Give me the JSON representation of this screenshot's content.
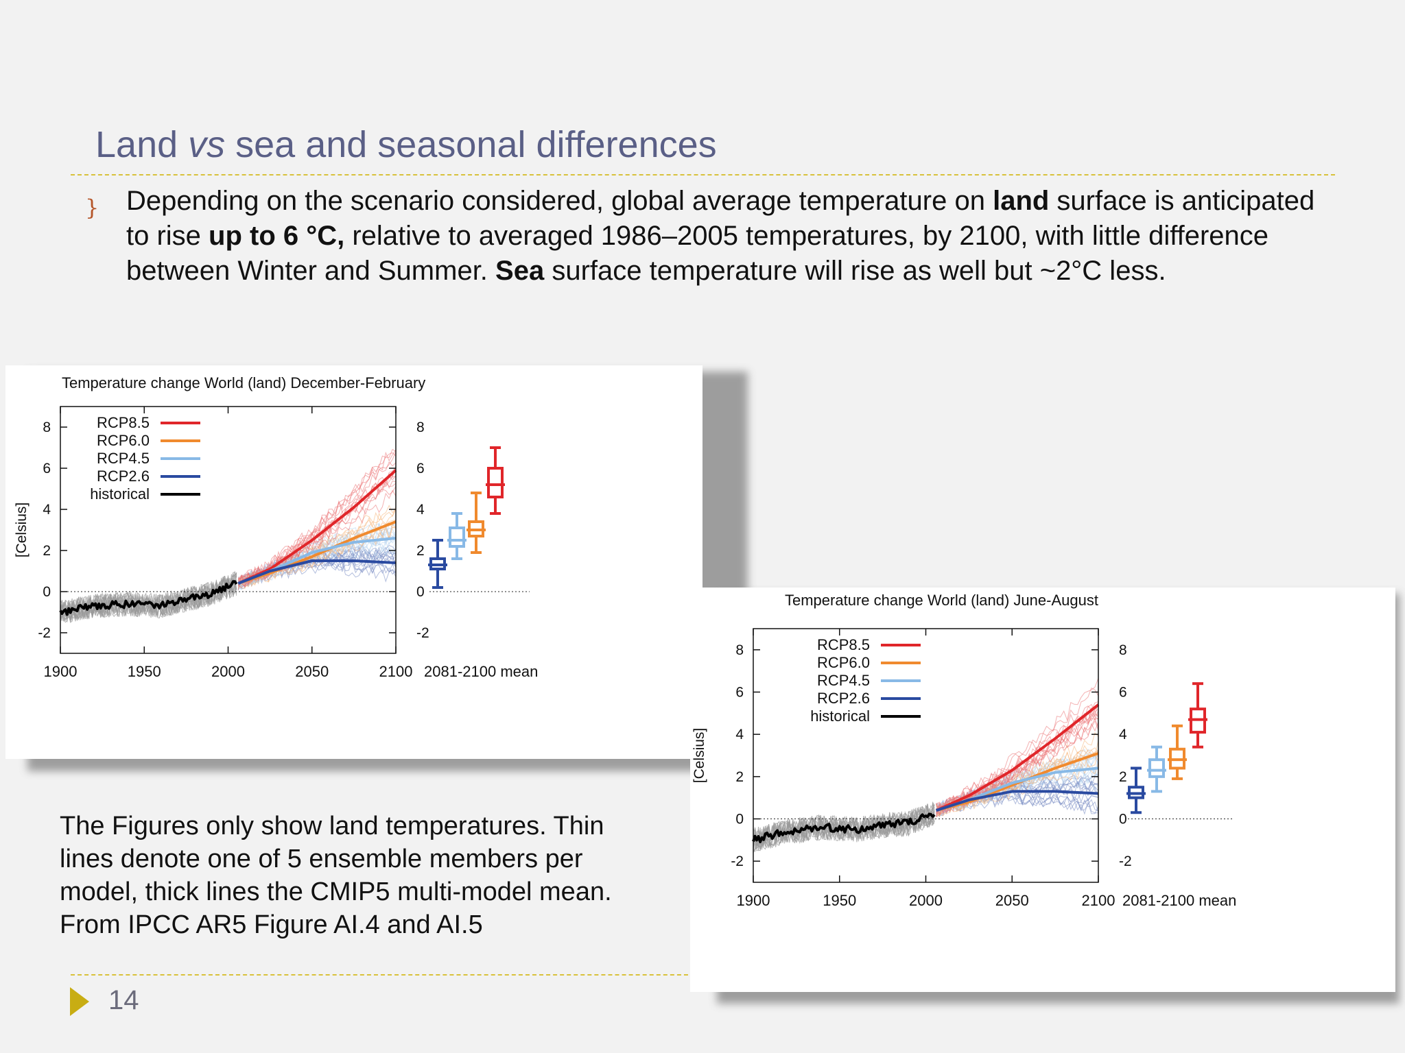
{
  "slide": {
    "title_pre": "Land ",
    "title_em": "vs",
    "title_post": " sea and seasonal differences",
    "bullet_marker": "}",
    "bullet": {
      "t1": "Depending on the scenario considered, global average temperature on ",
      "b1": "land",
      "t2": " surface is anticipated to rise ",
      "b2": "up to 6 °C,",
      "t3": " relative to averaged 1986–2005 temperatures, by 2100, with little difference between Winter and Summer.  ",
      "b3": "Sea",
      "t4": " surface temperature will rise as well but ~2°C less."
    },
    "caption": "The Figures only show land temperatures. Thin lines denote one of 5 ensemble members per model, thick lines the CMIP5 multi-model mean. From IPCC AR5 Figure AI.4 and AI.5",
    "page_number": "14"
  },
  "chart_data": [
    {
      "type": "line",
      "title": "Temperature change World (land) December-February",
      "ylabel": "[Celsius]",
      "xlabel": "",
      "xlim": [
        1900,
        2100
      ],
      "ylim": [
        -3,
        9
      ],
      "x_ticks": [
        1900,
        1950,
        2000,
        2050,
        2100
      ],
      "y_ticks": [
        -2,
        0,
        2,
        4,
        6,
        8
      ],
      "legend_position": "top-left",
      "boxplot_label": "2081-2100 mean",
      "series": [
        {
          "name": "RCP8.5",
          "color": "#e0262a",
          "x": [
            2006,
            2025,
            2050,
            2075,
            2100
          ],
          "values": [
            0.4,
            1.1,
            2.5,
            4.1,
            5.9
          ]
        },
        {
          "name": "RCP6.0",
          "color": "#f08a2e",
          "x": [
            2006,
            2025,
            2050,
            2075,
            2100
          ],
          "values": [
            0.4,
            0.9,
            1.7,
            2.6,
            3.4
          ]
        },
        {
          "name": "RCP4.5",
          "color": "#88b9e6",
          "x": [
            2006,
            2025,
            2050,
            2075,
            2100
          ],
          "values": [
            0.4,
            1.0,
            1.9,
            2.4,
            2.6
          ]
        },
        {
          "name": "RCP2.6",
          "color": "#2a4aa0",
          "x": [
            2006,
            2025,
            2050,
            2075,
            2100
          ],
          "values": [
            0.4,
            1.0,
            1.5,
            1.5,
            1.4
          ]
        },
        {
          "name": "historical",
          "color": "#000000",
          "x": [
            1900,
            1920,
            1940,
            1960,
            1975,
            1990,
            2005
          ],
          "values": [
            -1.0,
            -0.7,
            -0.6,
            -0.7,
            -0.4,
            -0.1,
            0.4
          ]
        }
      ],
      "boxplots": [
        {
          "name": "RCP2.6",
          "color": "#2a4aa0",
          "min": 0.2,
          "q1": 1.1,
          "median": 1.3,
          "q3": 1.6,
          "max": 2.5
        },
        {
          "name": "RCP4.5",
          "color": "#88b9e6",
          "min": 1.6,
          "q1": 2.2,
          "median": 2.5,
          "q3": 3.1,
          "max": 3.8
        },
        {
          "name": "RCP6.0",
          "color": "#f08a2e",
          "min": 1.9,
          "q1": 2.7,
          "median": 3.0,
          "q3": 3.4,
          "max": 4.8
        },
        {
          "name": "RCP8.5",
          "color": "#e0262a",
          "min": 3.8,
          "q1": 4.6,
          "median": 5.2,
          "q3": 6.0,
          "max": 7.0
        }
      ]
    },
    {
      "type": "line",
      "title": "Temperature change World (land) June-August",
      "ylabel": "[Celsius]",
      "xlabel": "",
      "xlim": [
        1900,
        2100
      ],
      "ylim": [
        -3,
        9
      ],
      "x_ticks": [
        1900,
        1950,
        2000,
        2050,
        2100
      ],
      "y_ticks": [
        -2,
        0,
        2,
        4,
        6,
        8
      ],
      "legend_position": "top-left",
      "boxplot_label": "2081-2100 mean",
      "series": [
        {
          "name": "RCP8.5",
          "color": "#e0262a",
          "x": [
            2006,
            2025,
            2050,
            2075,
            2100
          ],
          "values": [
            0.4,
            1.1,
            2.3,
            3.8,
            5.4
          ]
        },
        {
          "name": "RCP6.0",
          "color": "#f08a2e",
          "x": [
            2006,
            2025,
            2050,
            2075,
            2100
          ],
          "values": [
            0.4,
            0.8,
            1.6,
            2.4,
            3.1
          ]
        },
        {
          "name": "RCP4.5",
          "color": "#88b9e6",
          "x": [
            2006,
            2025,
            2050,
            2075,
            2100
          ],
          "values": [
            0.4,
            0.9,
            1.7,
            2.2,
            2.4
          ]
        },
        {
          "name": "RCP2.6",
          "color": "#2a4aa0",
          "x": [
            2006,
            2025,
            2050,
            2075,
            2100
          ],
          "values": [
            0.4,
            0.9,
            1.3,
            1.3,
            1.2
          ]
        },
        {
          "name": "historical",
          "color": "#000000",
          "x": [
            1900,
            1920,
            1940,
            1960,
            1975,
            1990,
            2005
          ],
          "values": [
            -1.0,
            -0.6,
            -0.4,
            -0.5,
            -0.3,
            -0.2,
            0.3
          ]
        }
      ],
      "boxplots": [
        {
          "name": "RCP2.6",
          "color": "#2a4aa0",
          "min": 0.3,
          "q1": 1.0,
          "median": 1.2,
          "q3": 1.5,
          "max": 2.4
        },
        {
          "name": "RCP4.5",
          "color": "#88b9e6",
          "min": 1.3,
          "q1": 2.0,
          "median": 2.3,
          "q3": 2.8,
          "max": 3.4
        },
        {
          "name": "RCP6.0",
          "color": "#f08a2e",
          "min": 1.9,
          "q1": 2.4,
          "median": 2.8,
          "q3": 3.3,
          "max": 4.4
        },
        {
          "name": "RCP8.5",
          "color": "#e0262a",
          "min": 3.4,
          "q1": 4.1,
          "median": 4.7,
          "q3": 5.2,
          "max": 6.4
        }
      ]
    }
  ]
}
